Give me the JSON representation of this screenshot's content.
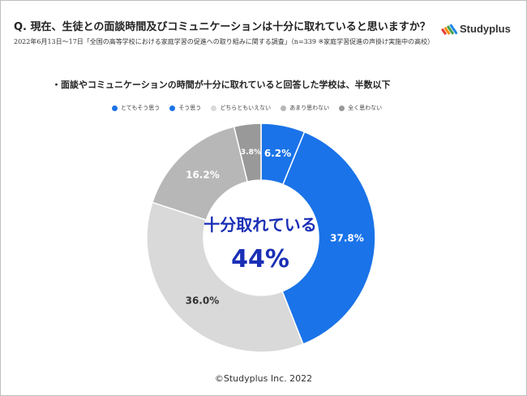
{
  "header": {
    "question": "Q. 現在、生徒との面談時間及びコミュニケーションは十分に取れていると思いますか？",
    "survey_note": "2022年6月13日～17日「全国の高等学校における家庭学習の促進への取り組みに関する調査」（n=339 ※家庭学習促進の声掛け実施中の高校）",
    "logo_text": "Studyplus",
    "logo_icon": "studyplus-stripes-icon"
  },
  "footer": {
    "copyright": "©Studyplus Inc. 2022"
  },
  "colors": {
    "blue": "#1a73e8",
    "darkgray": "#999999",
    "gray": "#b7b7b7",
    "lightgray": "#d9d9d9",
    "center_text": "#1a2fb5"
  },
  "chart_data": {
    "type": "pie",
    "donut": true,
    "title": "・面談やコミュニケーションの時間が十分に取れていると回答した学校は、半数以下",
    "center_label": "十分取れている",
    "center_value": "44%",
    "legend_position": "top",
    "slices": [
      {
        "label": "とてもそう思う",
        "value": 6.2,
        "value_label": "6.2%",
        "color": "#1a73e8"
      },
      {
        "label": "そう思う",
        "value": 37.8,
        "value_label": "37.8%",
        "color": "#1a73e8"
      },
      {
        "label": "どちらともいえない",
        "value": 36.0,
        "value_label": "36.0%",
        "color": "#d9d9d9"
      },
      {
        "label": "あまり思わない",
        "value": 16.2,
        "value_label": "16.2%",
        "color": "#b7b7b7"
      },
      {
        "label": "全く思わない",
        "value": 3.8,
        "value_label": "3.8%",
        "color": "#999999"
      }
    ]
  }
}
